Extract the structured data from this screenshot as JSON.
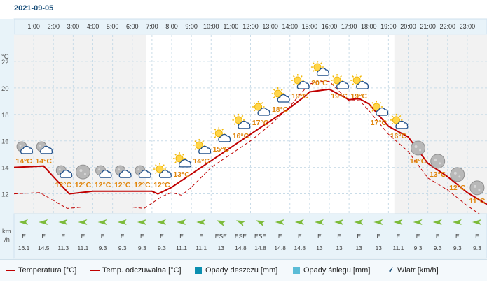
{
  "date": "2021-09-05",
  "units": {
    "temp_axis": "°C",
    "wind_axis_line1": "km",
    "wind_axis_line2": "/h"
  },
  "y_ticks": [
    "22",
    "20",
    "18",
    "16",
    "14",
    "12"
  ],
  "colors": {
    "temperature": "#c00000",
    "feels_like": "#c00000",
    "rain": "#0b8fb0",
    "snow": "#5bbcd6",
    "wind_arrow": "#7dbb3a",
    "label": "#e0860c"
  },
  "legend": {
    "temperature": "Temperatura [°C]",
    "feels_like": "Temp. odczuwalna [°C]",
    "rain": "Opady deszczu [mm]",
    "snow": "Opady śniegu [mm]",
    "wind": "Wiatr [km/h]"
  },
  "chart_data": {
    "type": "line",
    "ylim": [
      10.5,
      24
    ],
    "hours": [
      "1:00",
      "2:00",
      "3:00",
      "4:00",
      "5:00",
      "6:00",
      "7:00",
      "8:00",
      "9:00",
      "10:00",
      "11:00",
      "12:00",
      "13:00",
      "14:00",
      "15:00",
      "16:00",
      "17:00",
      "18:00",
      "19:00",
      "20:00",
      "21:00",
      "22:00",
      "23:00"
    ],
    "daylight_hours": [
      7,
      19
    ],
    "series": [
      {
        "name": "Temperatura",
        "x": [
          0,
          1.5,
          2.8,
          4,
          5,
          6,
          7,
          7.3,
          8,
          9,
          10,
          11,
          12,
          13,
          14,
          14.7,
          15,
          16,
          17,
          17.5,
          18,
          19,
          20,
          21,
          22,
          23,
          24
        ],
        "values": [
          14,
          14.1,
          12.0,
          12.2,
          12.2,
          12.2,
          12.2,
          12.0,
          12.5,
          13.5,
          14.5,
          15.5,
          16.5,
          17.5,
          18.5,
          19.3,
          19.7,
          19.9,
          19.1,
          19.2,
          18.8,
          17.1,
          16.3,
          14.3,
          13.3,
          12.1,
          11.2
        ],
        "labels": [
          "14°C",
          "14°C",
          "12°C",
          "12°C",
          "12°C",
          "12°C",
          "12°C",
          "12°C",
          "13°C",
          "14°C",
          "15°C",
          "16°C",
          "17°C",
          "18°C",
          "19°C",
          "20°C",
          "19°C",
          "19°C",
          "17°C",
          "16°C",
          "14°C",
          "13°C",
          "12°C",
          "11°C"
        ],
        "label_x": [
          0.5,
          1.5,
          2.5,
          3.5,
          4.5,
          5.5,
          6.5,
          7.5,
          8.5,
          9.5,
          10.5,
          11.5,
          12.5,
          13.5,
          14.5,
          15.5,
          16.5,
          17.5,
          18.5,
          19.5,
          20.5,
          21.5,
          22.5,
          23.5
        ],
        "label_y": [
          14.3,
          14.3,
          12.5,
          12.5,
          12.5,
          12.5,
          12.5,
          12.5,
          13.3,
          14.3,
          15.2,
          16.2,
          17.2,
          18.2,
          19.2,
          20.2,
          19.2,
          19.2,
          17.2,
          16.2,
          14.3,
          13.3,
          12.3,
          11.3
        ]
      },
      {
        "name": "Temp. odczuwalna",
        "x": [
          0,
          1.3,
          2.7,
          3.5,
          5,
          6,
          6.6,
          7,
          7.5,
          8,
          8.5,
          9,
          10,
          11,
          12,
          13,
          14,
          14.5,
          15,
          15.5,
          16,
          17,
          17.5,
          18,
          19,
          20,
          21,
          22,
          23,
          24
        ],
        "values": [
          12.0,
          12.1,
          10.9,
          11.0,
          11.0,
          11.0,
          10.9,
          11.3,
          11.8,
          12.1,
          11.9,
          12.5,
          14.0,
          15.0,
          16.0,
          17.2,
          18.6,
          19.5,
          20.3,
          20.5,
          20.5,
          19.0,
          19.1,
          18.3,
          16.5,
          15.2,
          13.2,
          12.3,
          11.1,
          10.1
        ]
      }
    ],
    "icons": [
      "moon-cloud",
      "moon-cloud",
      "moon-cloud",
      "moon",
      "moon-cloud",
      "moon-cloud",
      "moon-cloud",
      "sun-cloud",
      "sun-cloud",
      "sun-cloud",
      "sun-cloud",
      "sun-cloud",
      "sun-cloud",
      "sun-cloud",
      "sun-cloud",
      "sun-cloud",
      "sun-cloud",
      "sun-cloud",
      "sun-cloud",
      "sun-cloud",
      "moon",
      "moon",
      "moon",
      "moon"
    ],
    "wind": {
      "directions": [
        "E",
        "E",
        "E",
        "E",
        "E",
        "E",
        "E",
        "E",
        "E",
        "E",
        "ESE",
        "ESE",
        "ESE",
        "E",
        "E",
        "E",
        "E",
        "E",
        "E",
        "E",
        "E",
        "E",
        "E",
        "E"
      ],
      "speeds": [
        "16.1",
        "14.5",
        "11.3",
        "11.1",
        "9.3",
        "9.3",
        "9.3",
        "9.3",
        "11.1",
        "11.1",
        "13",
        "14.8",
        "14.8",
        "14.8",
        "14.8",
        "13",
        "13",
        "13",
        "13",
        "11.1",
        "9.3",
        "9.3",
        "9.3",
        "9.3"
      ]
    }
  }
}
